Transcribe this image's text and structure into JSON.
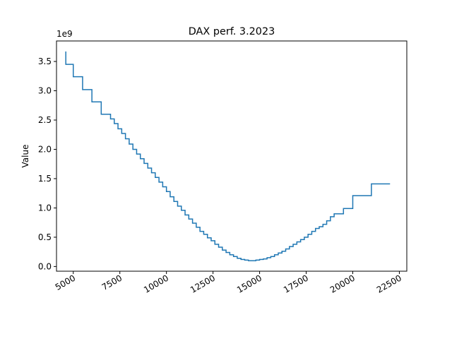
{
  "chart_data": {
    "type": "line",
    "step": "post",
    "title": "DAX perf. 3.2023",
    "xlabel": "",
    "ylabel": "Value",
    "y_offset_text": "1e9",
    "xlim": [
      4100,
      22900
    ],
    "ylim": [
      -80000000.0,
      3850000000.0
    ],
    "x_ticks": [
      5000,
      7500,
      10000,
      12500,
      15000,
      17500,
      20000,
      22500
    ],
    "x_tick_labels": [
      "5000",
      "7500",
      "10000",
      "12500",
      "15000",
      "17500",
      "20000",
      "22500"
    ],
    "y_ticks": [
      0,
      500000000.0,
      1000000000.0,
      1500000000.0,
      2000000000.0,
      2500000000.0,
      3000000000.0,
      3500000000.0
    ],
    "y_tick_labels": [
      "0.0",
      "0.5",
      "1.0",
      "1.5",
      "2.0",
      "2.5",
      "3.0",
      "3.5"
    ],
    "grid": false,
    "series": [
      {
        "color": "#1f77b4",
        "x": [
          4600,
          5000,
          5500,
          6000,
          6500,
          7000,
          7200,
          7400,
          7600,
          7800,
          8000,
          8200,
          8400,
          8600,
          8800,
          9000,
          9200,
          9400,
          9600,
          9800,
          10000,
          10200,
          10400,
          10600,
          10800,
          11000,
          11200,
          11400,
          11600,
          11800,
          12000,
          12200,
          12400,
          12600,
          12800,
          13000,
          13200,
          13400,
          13600,
          13800,
          14000,
          14200,
          14400,
          14600,
          14800,
          15000,
          15200,
          15400,
          15600,
          15800,
          16000,
          16200,
          16400,
          16600,
          16800,
          17000,
          17200,
          17400,
          17600,
          17800,
          18000,
          18200,
          18400,
          18600,
          18800,
          19000,
          19500,
          20000,
          21000,
          22000
        ],
        "values": [
          3450000000.0,
          3240000000.0,
          3020000000.0,
          2810000000.0,
          2600000000.0,
          2520000000.0,
          2440000000.0,
          2350000000.0,
          2270000000.0,
          2180000000.0,
          2090000000.0,
          2000000000.0,
          1920000000.0,
          1840000000.0,
          1760000000.0,
          1680000000.0,
          1600000000.0,
          1520000000.0,
          1440000000.0,
          1360000000.0,
          1280000000.0,
          1190000000.0,
          1110000000.0,
          1030000000.0,
          960000000.0,
          880000000.0,
          810000000.0,
          740000000.0,
          670000000.0,
          600000000.0,
          550000000.0,
          490000000.0,
          440000000.0,
          380000000.0,
          330000000.0,
          280000000.0,
          240000000.0,
          200000000.0,
          170000000.0,
          140000000.0,
          120000000.0,
          110000000.0,
          100000000.0,
          100000000.0,
          110000000.0,
          120000000.0,
          130000000.0,
          150000000.0,
          170000000.0,
          200000000.0,
          230000000.0,
          260000000.0,
          300000000.0,
          340000000.0,
          380000000.0,
          420000000.0,
          460000000.0,
          500000000.0,
          550000000.0,
          600000000.0,
          650000000.0,
          680000000.0,
          720000000.0,
          780000000.0,
          850000000.0,
          900000000.0,
          990000000.0,
          1210000000.0,
          1410000000.0,
          1410000000.0
        ],
        "start_value": 3670000000.0
      }
    ]
  }
}
